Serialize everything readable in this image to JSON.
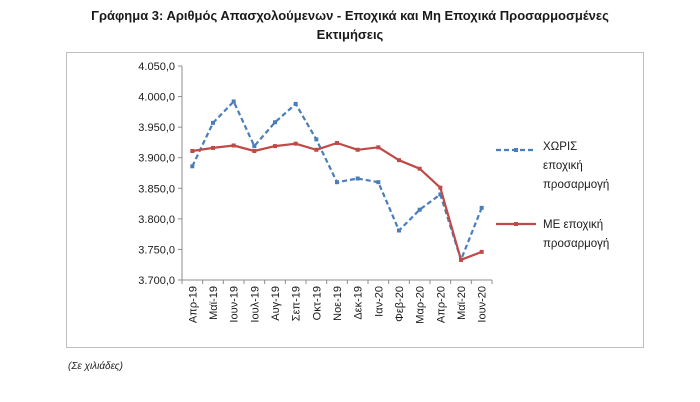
{
  "title_line1": "Γράφημα 3: Αριθμός Απασχολούμενων - Εποχικά και Μη Εποχικά Προσαρμοσμένες",
  "title_line2": "Εκτιμήσεις",
  "note": "(Σε χιλιάδες)",
  "chart_data": {
    "type": "line",
    "categories": [
      "Απρ-19",
      "Μαϊ-19",
      "Ιουν-19",
      "Ιουλ-19",
      "Αυγ-19",
      "Σεπ-19",
      "Οκτ-19",
      "Νοε-19",
      "Δεκ-19",
      "Ιαν-20",
      "Φεβ-20",
      "Μαρ-20",
      "Απρ-20",
      "Μαϊ-20",
      "Ιουν-20"
    ],
    "yticks": [
      "4.050,0",
      "4.000,0",
      "3.950,0",
      "3.900,0",
      "3.850,0",
      "3.800,0",
      "3.750,0",
      "3.700,0"
    ],
    "ylim": [
      3700,
      4050
    ],
    "grid": false,
    "legend_position": "right",
    "series": [
      {
        "legend_lines": [
          "ΧΩΡΙΣ",
          "εποχική",
          "προσαρμογή"
        ],
        "color": "#4a7ebb",
        "style": "dashed",
        "values": [
          3886,
          3957,
          3992,
          3919,
          3958,
          3988,
          3930,
          3860,
          3866,
          3860,
          3781,
          3815,
          3840,
          3733,
          3818
        ]
      },
      {
        "legend_lines": [
          "ΜΕ εποχική",
          "προσαρμογή"
        ],
        "color": "#be4b48",
        "style": "solid",
        "values": [
          3911,
          3916,
          3920,
          3911,
          3919,
          3923,
          3913,
          3924,
          3913,
          3917,
          3896,
          3882,
          3851,
          3733,
          3746
        ]
      }
    ]
  }
}
